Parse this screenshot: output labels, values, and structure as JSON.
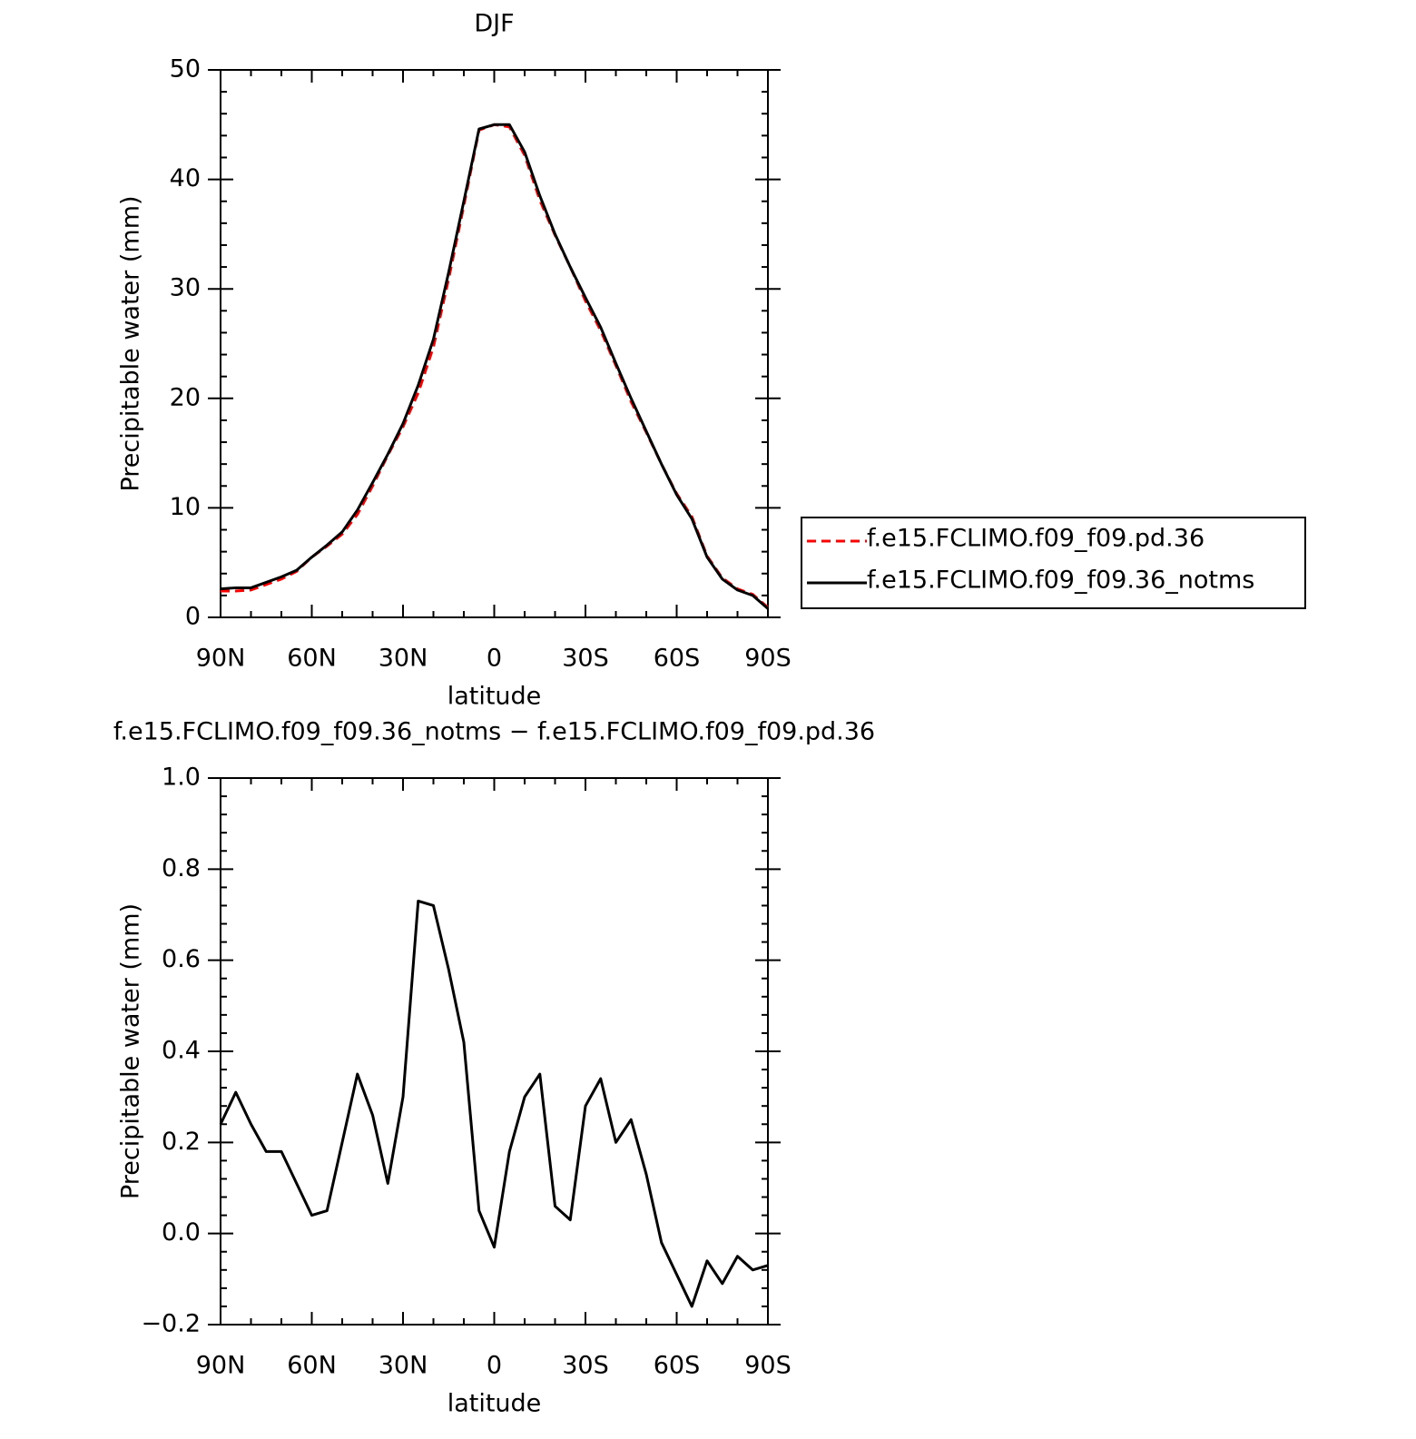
{
  "chart_data": [
    {
      "type": "line",
      "title": "DJF",
      "xlabel": "latitude",
      "ylabel": "Precipitable water (mm)",
      "x": [
        90,
        85,
        80,
        75,
        70,
        65,
        60,
        55,
        50,
        45,
        40,
        35,
        30,
        25,
        20,
        15,
        10,
        5,
        0,
        -5,
        -10,
        -15,
        -20,
        -25,
        -30,
        -35,
        -40,
        -45,
        -50,
        -55,
        -60,
        -65,
        -70,
        -75,
        -80,
        -85,
        -90
      ],
      "series": [
        {
          "name": "f.e15.FCLIMO.f09_f09.pd.36",
          "color": "#ff0000",
          "dash": true,
          "values": [
            2.4,
            2.4,
            2.5,
            3.0,
            3.5,
            4.2,
            5.5,
            6.5,
            7.6,
            9.4,
            12.0,
            14.8,
            17.4,
            20.5,
            24.7,
            30.9,
            37.6,
            44.5,
            45.0,
            44.8,
            42.2,
            38.1,
            34.9,
            32.0,
            28.9,
            26.2,
            23.0,
            19.7,
            16.9,
            14.0,
            11.3,
            9.2,
            5.6,
            3.6,
            2.6,
            2.1,
            0.9
          ]
        },
        {
          "name": "f.e15.FCLIMO.f09_f09.36_notms",
          "color": "#000000",
          "dash": false,
          "values": [
            2.6,
            2.7,
            2.7,
            3.2,
            3.7,
            4.3,
            5.5,
            6.6,
            7.8,
            9.8,
            12.3,
            14.9,
            17.7,
            21.2,
            25.4,
            31.5,
            38.0,
            44.6,
            45.0,
            45.0,
            42.5,
            38.5,
            35.0,
            32.0,
            29.2,
            26.5,
            23.2,
            20.0,
            17.0,
            14.0,
            11.2,
            9.0,
            5.5,
            3.5,
            2.5,
            2.0,
            0.8
          ]
        }
      ],
      "xlim": [
        90,
        -90
      ],
      "xticks": [
        {
          "value": 90,
          "label": "90N"
        },
        {
          "value": 60,
          "label": "60N"
        },
        {
          "value": 30,
          "label": "30N"
        },
        0,
        {
          "value": -30,
          "label": "30S"
        },
        {
          "value": -60,
          "label": "60S"
        },
        {
          "value": -90,
          "label": "90S"
        }
      ],
      "ylim": [
        0,
        50
      ],
      "yticks": [
        0,
        10,
        20,
        30,
        40,
        50
      ],
      "legend": "right"
    },
    {
      "type": "line",
      "title": "f.e15.FCLIMO.f09_f09.36_notms − f.e15.FCLIMO.f09_f09.pd.36",
      "xlabel": "latitude",
      "ylabel": "Precipitable water (mm)",
      "x": [
        90,
        85,
        80,
        75,
        70,
        65,
        60,
        55,
        50,
        45,
        40,
        35,
        30,
        25,
        20,
        15,
        10,
        5,
        0,
        -5,
        -10,
        -15,
        -20,
        -25,
        -30,
        -35,
        -40,
        -45,
        -50,
        -55,
        -60,
        -65,
        -70,
        -75,
        -80,
        -85,
        -90
      ],
      "series": [
        {
          "color": "#000000",
          "dash": false,
          "values": [
            0.24,
            0.31,
            0.24,
            0.18,
            0.18,
            0.11,
            0.04,
            0.05,
            0.2,
            0.35,
            0.26,
            0.11,
            0.3,
            0.73,
            0.72,
            0.58,
            0.42,
            0.05,
            -0.03,
            0.18,
            0.3,
            0.35,
            0.06,
            0.03,
            0.28,
            0.34,
            0.2,
            0.25,
            0.13,
            -0.02,
            -0.09,
            -0.16,
            -0.06,
            -0.11,
            -0.05,
            -0.08,
            -0.07
          ]
        }
      ],
      "xlim": [
        90,
        -90
      ],
      "xticks": [
        {
          "value": 90,
          "label": "90N"
        },
        {
          "value": 60,
          "label": "60N"
        },
        {
          "value": 30,
          "label": "30N"
        },
        0,
        {
          "value": -30,
          "label": "30S"
        },
        {
          "value": -60,
          "label": "60S"
        },
        {
          "value": -90,
          "label": "90S"
        }
      ],
      "ylim": [
        -0.2,
        1.0
      ],
      "yticks": [
        {
          "value": -0.2,
          "label": "−0.2"
        },
        {
          "value": 0,
          "label": "0.0"
        },
        0.2,
        0.4,
        0.6,
        0.8,
        {
          "value": 1.0,
          "label": "1.0"
        }
      ]
    }
  ]
}
